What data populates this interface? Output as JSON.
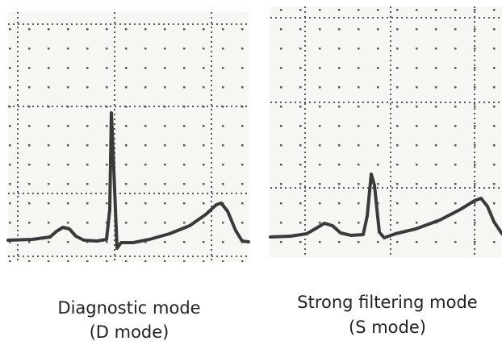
{
  "captions": [
    {
      "line1": "Diagnostic mode",
      "line2": "(D mode)"
    },
    {
      "line1": "Strong filtering mode",
      "line2": "(S mode)"
    }
  ]
}
